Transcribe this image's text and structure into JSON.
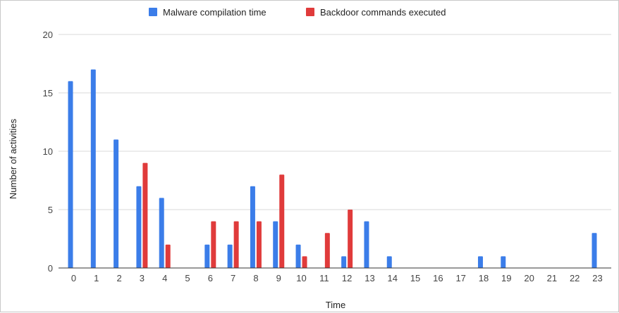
{
  "chart_data": {
    "type": "bar",
    "title": "",
    "xlabel": "Time",
    "ylabel": "Number of activities",
    "ylim": [
      0,
      20
    ],
    "yticks": [
      0,
      5,
      10,
      15,
      20
    ],
    "grid": true,
    "legend_position": "top-center",
    "categories": [
      "0",
      "1",
      "2",
      "3",
      "4",
      "5",
      "6",
      "7",
      "8",
      "9",
      "10",
      "11",
      "12",
      "13",
      "14",
      "15",
      "16",
      "17",
      "18",
      "19",
      "20",
      "21",
      "22",
      "23"
    ],
    "series": [
      {
        "name": "Malware compilation time",
        "color": "#3b7de9",
        "values": [
          16,
          17,
          11,
          7,
          6,
          0,
          2,
          2,
          7,
          4,
          2,
          0,
          1,
          4,
          1,
          0,
          0,
          0,
          1,
          1,
          0,
          0,
          0,
          3
        ]
      },
      {
        "name": "Backdoor commands executed",
        "color": "#e03b3b",
        "values": [
          0,
          0,
          0,
          9,
          2,
          0,
          4,
          4,
          4,
          8,
          1,
          3,
          5,
          0,
          0,
          0,
          0,
          0,
          0,
          0,
          0,
          0,
          0,
          0
        ]
      }
    ]
  }
}
